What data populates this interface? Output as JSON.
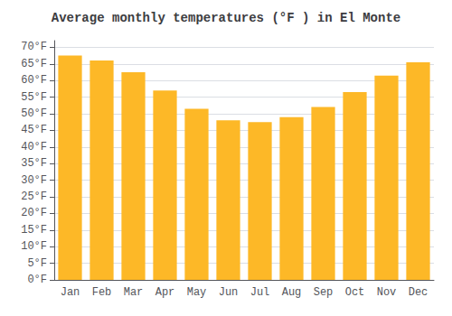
{
  "chart_data": {
    "type": "bar",
    "title": "Average monthly temperatures (°F ) in El Monte",
    "categories": [
      "Jan",
      "Feb",
      "Mar",
      "Apr",
      "May",
      "Jun",
      "Jul",
      "Aug",
      "Sep",
      "Oct",
      "Nov",
      "Dec"
    ],
    "values": [
      67.5,
      66.0,
      62.5,
      57.0,
      51.5,
      48.0,
      47.5,
      49.0,
      52.0,
      56.5,
      61.5,
      65.5
    ],
    "color": "#FDB827",
    "ylim": [
      0,
      72
    ],
    "yticks": [
      {
        "value": 0,
        "label": "0°F"
      },
      {
        "value": 5,
        "label": "5°F"
      },
      {
        "value": 10,
        "label": "10°F"
      },
      {
        "value": 15,
        "label": "15°F"
      },
      {
        "value": 20,
        "label": "20°F"
      },
      {
        "value": 25,
        "label": "25°F"
      },
      {
        "value": 30,
        "label": "30°F"
      },
      {
        "value": 35,
        "label": "35°F"
      },
      {
        "value": 40,
        "label": "40°F"
      },
      {
        "value": 45,
        "label": "45°F"
      },
      {
        "value": 50,
        "label": "50°F"
      },
      {
        "value": 55,
        "label": "55°F"
      },
      {
        "value": 60,
        "label": "60°F"
      },
      {
        "value": 65,
        "label": "65°F"
      },
      {
        "value": 70,
        "label": "70°F"
      }
    ],
    "grid": true
  }
}
